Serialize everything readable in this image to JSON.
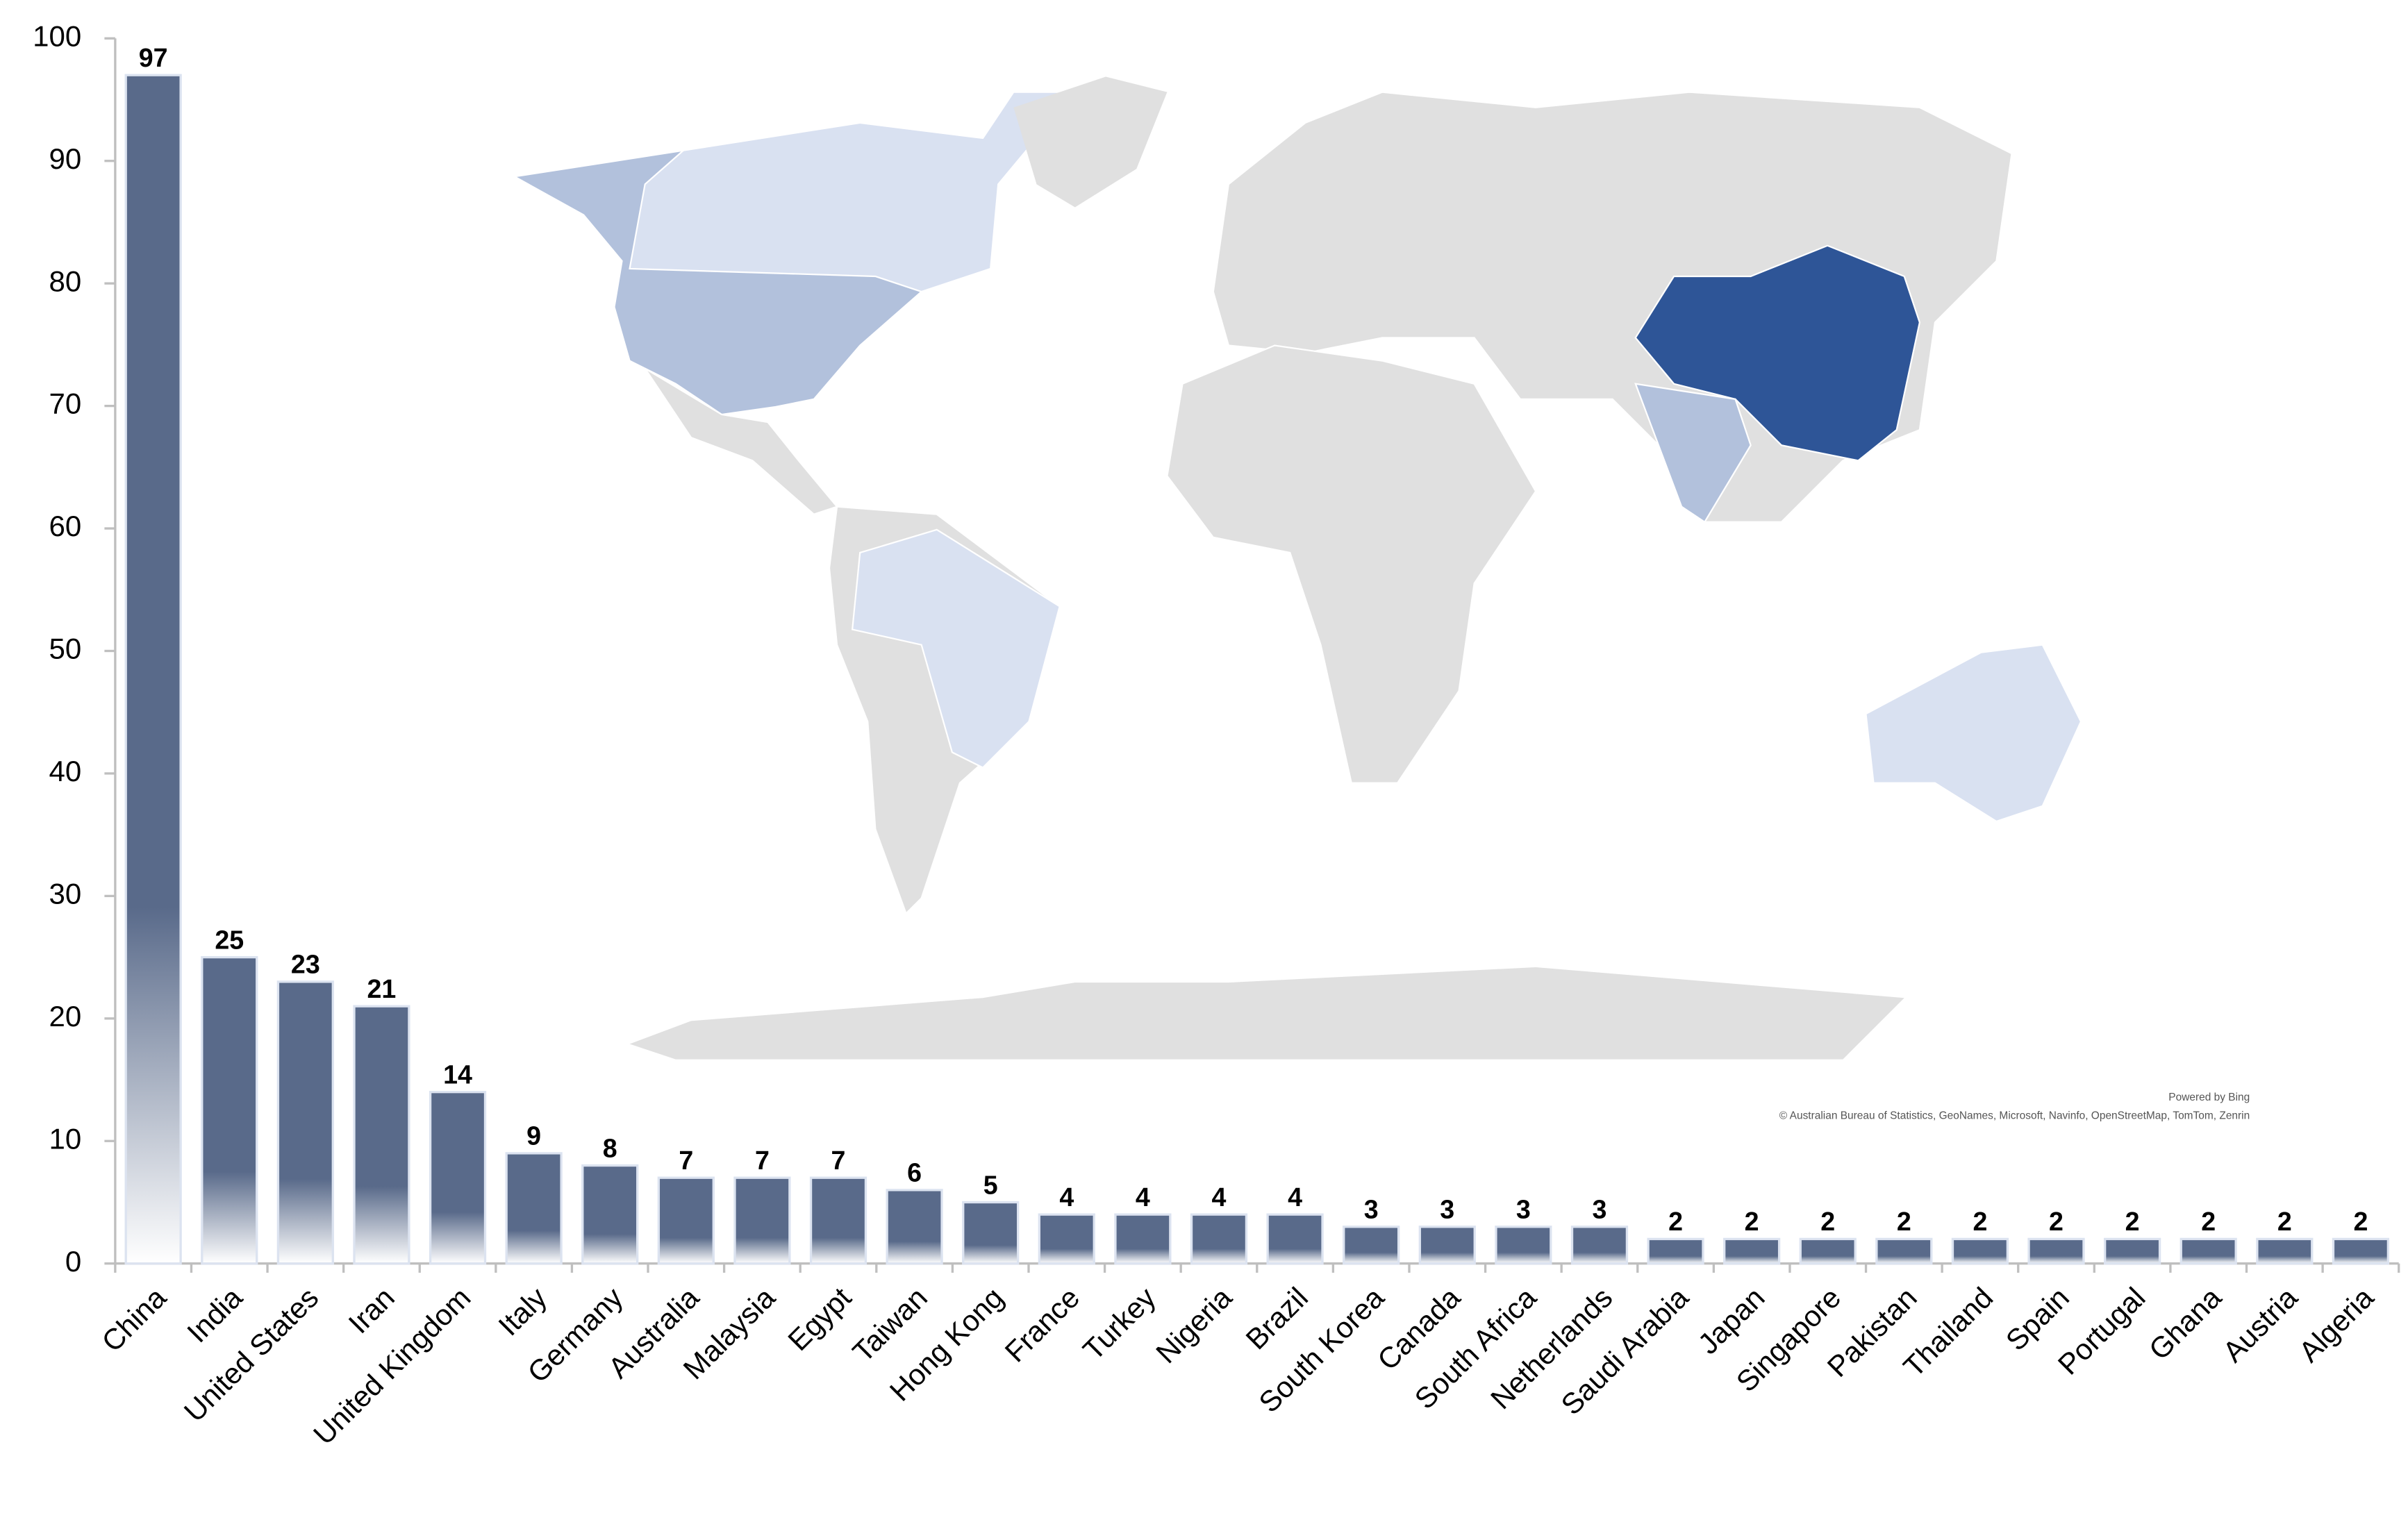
{
  "chart_data": {
    "type": "bar",
    "categories": [
      "China",
      "India",
      "United States",
      "Iran",
      "United Kingdom",
      "Italy",
      "Germany",
      "Australia",
      "Malaysia",
      "Egypt",
      "Taiwan",
      "Hong Kong",
      "France",
      "Turkey",
      "Nigeria",
      "Brazil",
      "South Korea",
      "Canada",
      "South Africa",
      "Netherlands",
      "Saudi Arabia",
      "Japan",
      "Singapore",
      "Pakistan",
      "Thailand",
      "Spain",
      "Portugal",
      "Ghana",
      "Austria",
      "Algeria"
    ],
    "values": [
      97,
      25,
      23,
      21,
      14,
      9,
      8,
      7,
      7,
      7,
      6,
      5,
      4,
      4,
      4,
      4,
      3,
      3,
      3,
      3,
      2,
      2,
      2,
      2,
      2,
      2,
      2,
      2,
      2,
      2
    ],
    "color": "#596a8a",
    "ylim": [
      0,
      100
    ],
    "yticks": [
      0,
      10,
      20,
      30,
      40,
      50,
      60,
      70,
      80,
      90,
      100
    ],
    "grid": false,
    "map_credits": [
      "Powered by Bing",
      "© Australian Bureau of Statistics, GeoNames, Microsoft, Navinfo, OpenStreetMap, TomTom, Zenrin"
    ]
  }
}
